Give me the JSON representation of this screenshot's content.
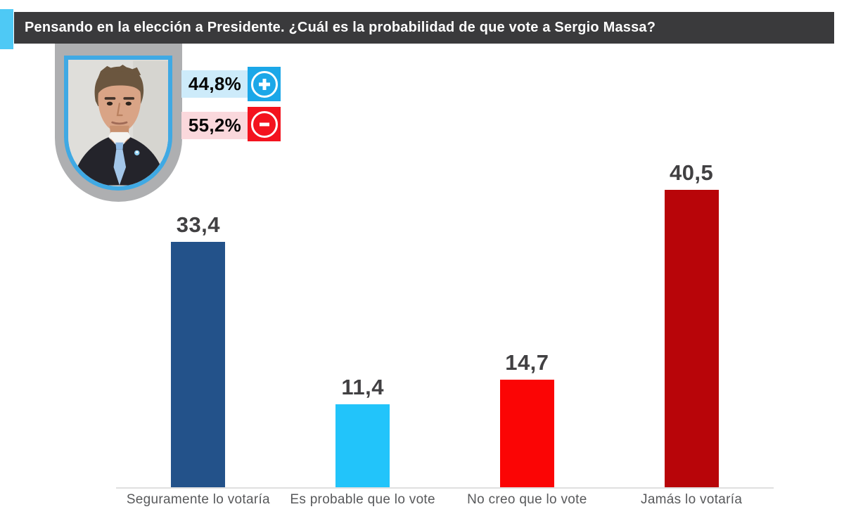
{
  "header": {
    "title": "Pensando en la elección a Presidente. ¿Cuál es la probabilidad de que vote a Sergio Massa?"
  },
  "badge": {
    "portrait_alt": "Sergio Massa"
  },
  "summary": {
    "positive": {
      "value": "44,8%",
      "icon": "plus-icon",
      "chip_color": "#1BA7E8",
      "bg_color": "#CDEBFA"
    },
    "negative": {
      "value": "55,2%",
      "icon": "minus-icon",
      "chip_color": "#F3131E",
      "bg_color": "#FAD8DC"
    }
  },
  "chart_data": {
    "type": "bar",
    "categories": [
      "Seguramente lo votaría",
      "Es probable que lo vote",
      "No creo que lo vote",
      "Jamás lo votaría"
    ],
    "values": [
      33.4,
      11.4,
      14.7,
      40.5
    ],
    "value_labels": [
      "33,4",
      "11,4",
      "14,7",
      "40,5"
    ],
    "bar_colors": [
      "#23528A",
      "#22C4FA",
      "#FB0505",
      "#B80509"
    ],
    "title": "Pensando en la elección a Presidente. ¿Cuál es la probabilidad de que vote a Sergio Massa?",
    "xlabel": "",
    "ylabel": "",
    "ylim": [
      0,
      45
    ],
    "grid": false,
    "legend": false,
    "annotations": []
  },
  "colors": {
    "accent_cyan": "#4EC9F5",
    "header_bg": "#3A3A3C",
    "header_text": "#FFFFFF",
    "badge_gray": "#AEAFB1",
    "badge_border_blue": "#3FA9E4",
    "baseline_gray": "#E0E0E0",
    "value_label": "#414042",
    "category_label": "#58595B"
  }
}
